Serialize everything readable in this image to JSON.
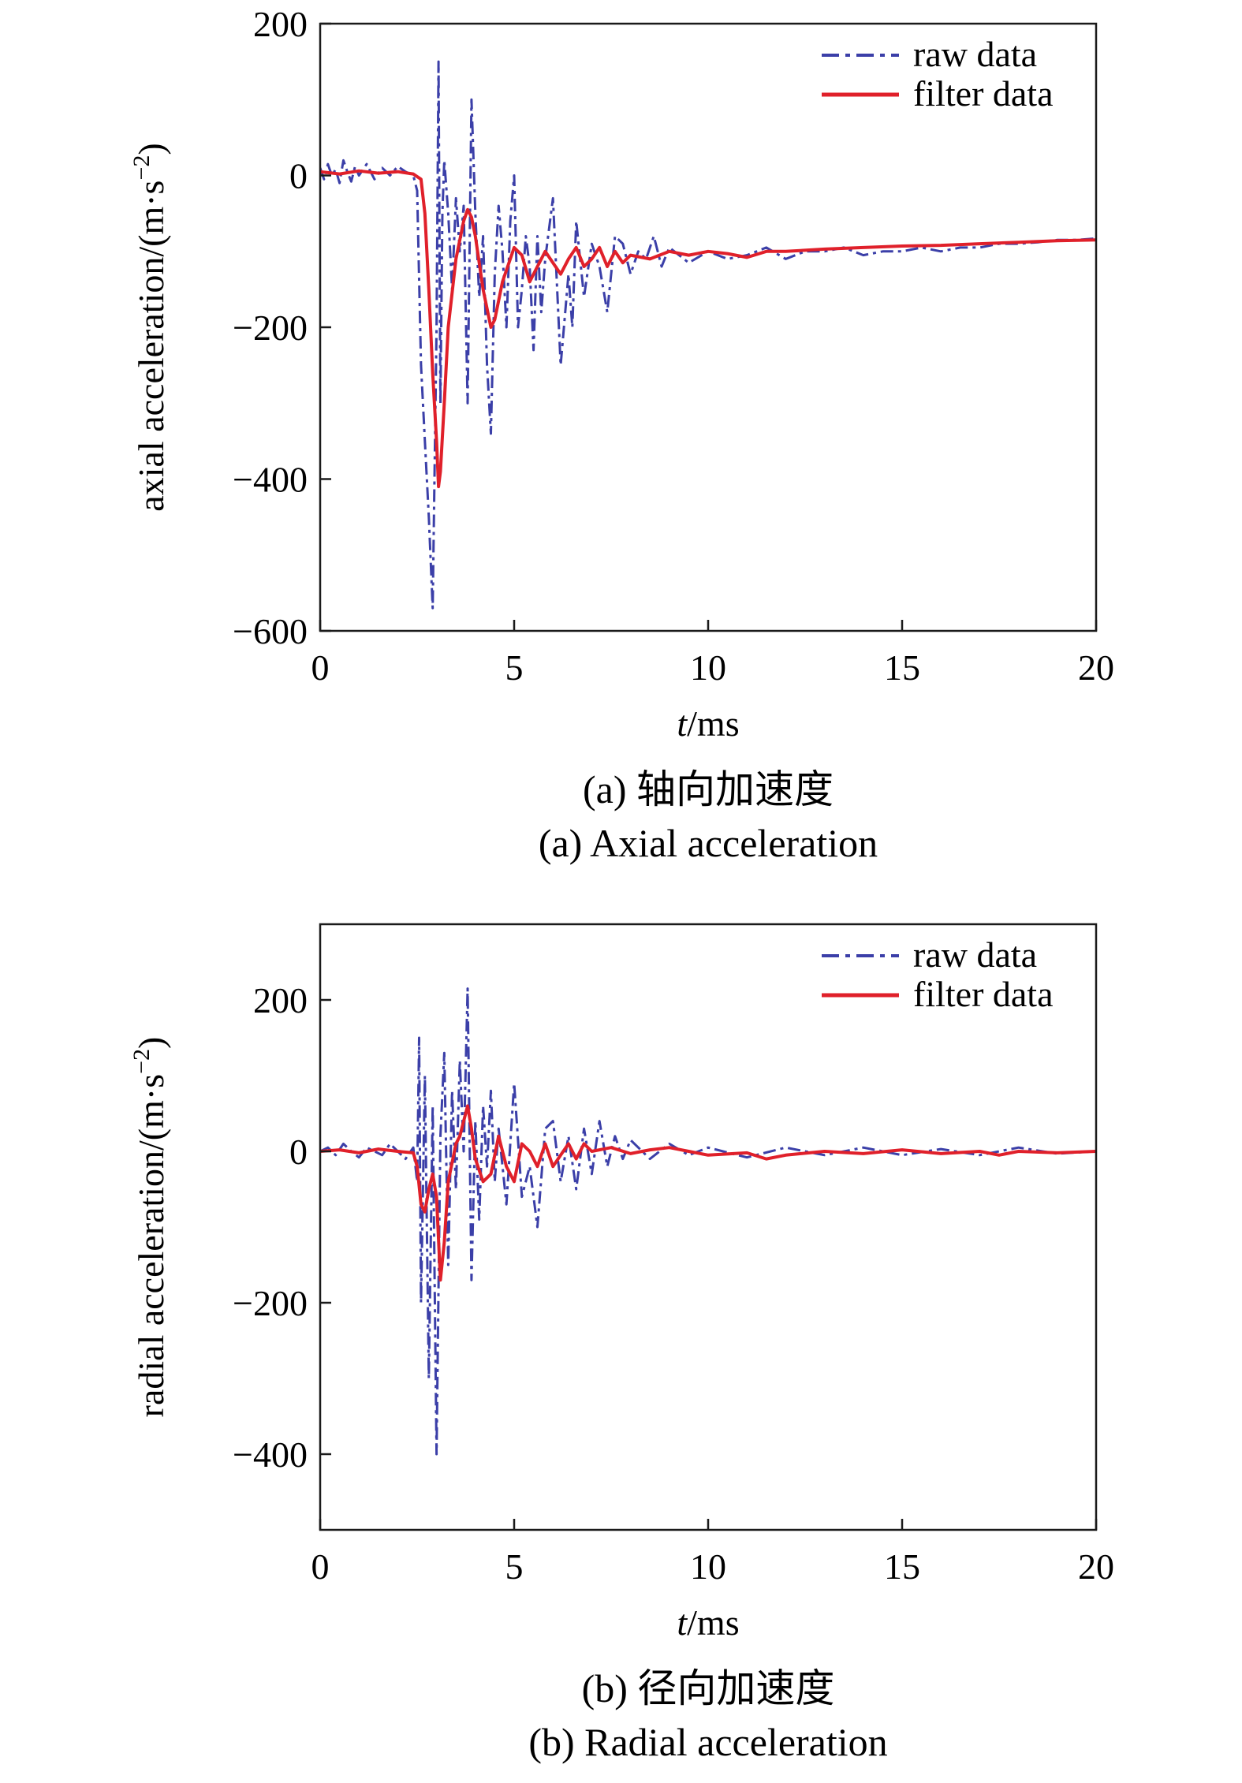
{
  "chart_data": [
    {
      "type": "line",
      "caption_cn": "(a) 轴向加速度",
      "caption_en": "(a) Axial acceleration",
      "xlabel_italic": "t",
      "xlabel_unit": "/ms",
      "ylabel_main": "axial acceleration/(m·s",
      "ylabel_sup": "−2",
      "ylabel_close": ")",
      "xlim": [
        0,
        20
      ],
      "ylim": [
        -600,
        200
      ],
      "xticks": [
        0,
        5,
        10,
        15,
        20
      ],
      "xtick_labels": [
        "0",
        "5",
        "10",
        "15",
        "20"
      ],
      "yticks": [
        -600,
        -400,
        -200,
        0,
        200
      ],
      "ytick_labels": [
        "−600",
        "−400",
        "−200",
        "0",
        "200"
      ],
      "legend": {
        "placement": "top-right"
      },
      "series": [
        {
          "name": "raw data",
          "style": "dash-dot",
          "color": "#3b3fa8",
          "x": [
            0,
            0.1,
            0.2,
            0.3,
            0.4,
            0.5,
            0.6,
            0.7,
            0.8,
            0.9,
            1.0,
            1.2,
            1.4,
            1.6,
            1.8,
            2.0,
            2.2,
            2.4,
            2.5,
            2.6,
            2.7,
            2.8,
            2.9,
            3.0,
            3.05,
            3.1,
            3.15,
            3.2,
            3.3,
            3.4,
            3.5,
            3.6,
            3.7,
            3.8,
            3.9,
            4.0,
            4.1,
            4.2,
            4.3,
            4.4,
            4.5,
            4.6,
            4.7,
            4.8,
            4.9,
            5.0,
            5.1,
            5.2,
            5.3,
            5.4,
            5.5,
            5.6,
            5.7,
            5.8,
            5.9,
            6.0,
            6.2,
            6.4,
            6.5,
            6.6,
            6.8,
            7.0,
            7.2,
            7.4,
            7.6,
            7.8,
            8.0,
            8.2,
            8.4,
            8.6,
            8.8,
            9.0,
            9.5,
            10.0,
            10.5,
            11.0,
            11.5,
            12.0,
            12.5,
            13.0,
            13.5,
            14.0,
            14.5,
            15.0,
            15.5,
            16.0,
            16.5,
            17.0,
            17.5,
            18.0,
            18.5,
            19.0,
            19.5,
            20.0
          ],
          "y": [
            10,
            -5,
            15,
            0,
            8,
            -10,
            20,
            5,
            -8,
            12,
            0,
            15,
            -5,
            10,
            0,
            12,
            5,
            0,
            -20,
            -250,
            -350,
            -450,
            -570,
            -200,
            150,
            -300,
            -50,
            20,
            -50,
            -150,
            -30,
            -100,
            -40,
            -300,
            100,
            -50,
            -160,
            -80,
            -250,
            -340,
            -130,
            -40,
            -100,
            -200,
            -60,
            0,
            -200,
            -150,
            -80,
            -120,
            -230,
            -80,
            -180,
            -110,
            -70,
            -30,
            -250,
            -130,
            -200,
            -60,
            -160,
            -90,
            -120,
            -180,
            -80,
            -90,
            -130,
            -100,
            -110,
            -80,
            -120,
            -95,
            -115,
            -100,
            -110,
            -105,
            -95,
            -110,
            -100,
            -100,
            -95,
            -105,
            -100,
            -100,
            -95,
            -100,
            -95,
            -95,
            -90,
            -90,
            -88,
            -85,
            -85,
            -83
          ]
        },
        {
          "name": "filter data",
          "style": "solid",
          "color": "#e0202a",
          "x": [
            0,
            0.5,
            1.0,
            1.5,
            2.0,
            2.4,
            2.6,
            2.7,
            2.8,
            2.9,
            3.0,
            3.05,
            3.1,
            3.2,
            3.3,
            3.5,
            3.7,
            3.8,
            3.9,
            4.0,
            4.2,
            4.4,
            4.5,
            4.7,
            4.9,
            5.0,
            5.2,
            5.4,
            5.6,
            5.8,
            6.0,
            6.2,
            6.4,
            6.6,
            6.8,
            7.0,
            7.2,
            7.4,
            7.6,
            7.8,
            8.0,
            8.5,
            9.0,
            9.5,
            10.0,
            10.5,
            11.0,
            11.5,
            12.0,
            13.0,
            14.0,
            15.0,
            16.0,
            17.0,
            18.0,
            19.0,
            20.0
          ],
          "y": [
            5,
            2,
            6,
            3,
            5,
            2,
            -5,
            -50,
            -150,
            -260,
            -350,
            -410,
            -390,
            -300,
            -200,
            -110,
            -60,
            -45,
            -55,
            -80,
            -150,
            -200,
            -190,
            -140,
            -110,
            -95,
            -105,
            -140,
            -120,
            -100,
            -115,
            -130,
            -110,
            -95,
            -120,
            -110,
            -95,
            -120,
            -100,
            -115,
            -105,
            -110,
            -100,
            -105,
            -100,
            -103,
            -108,
            -100,
            -100,
            -97,
            -95,
            -93,
            -92,
            -90,
            -88,
            -86,
            -85
          ]
        }
      ]
    },
    {
      "type": "line",
      "caption_cn": "(b) 径向加速度",
      "caption_en": "(b) Radial acceleration",
      "xlabel_italic": "t",
      "xlabel_unit": "/ms",
      "ylabel_main": "radial acceleration/(m·s",
      "ylabel_sup": "−2",
      "ylabel_close": ")",
      "xlim": [
        0,
        20
      ],
      "ylim": [
        -500,
        300
      ],
      "xticks": [
        0,
        5,
        10,
        15,
        20
      ],
      "xtick_labels": [
        "0",
        "5",
        "10",
        "15",
        "20"
      ],
      "yticks": [
        -400,
        -200,
        0,
        200
      ],
      "ytick_labels": [
        "−400",
        "−200",
        "0",
        "200"
      ],
      "legend": {
        "placement": "top-right"
      },
      "series": [
        {
          "name": "raw data",
          "style": "dash-dot",
          "color": "#3b3fa8",
          "x": [
            0,
            0.2,
            0.4,
            0.6,
            0.8,
            1.0,
            1.2,
            1.4,
            1.6,
            1.8,
            2.0,
            2.2,
            2.4,
            2.5,
            2.55,
            2.6,
            2.7,
            2.8,
            2.9,
            3.0,
            3.05,
            3.1,
            3.2,
            3.3,
            3.4,
            3.5,
            3.6,
            3.7,
            3.8,
            3.9,
            4.0,
            4.1,
            4.2,
            4.3,
            4.4,
            4.5,
            4.6,
            4.8,
            5.0,
            5.2,
            5.4,
            5.6,
            5.8,
            6.0,
            6.2,
            6.4,
            6.6,
            6.8,
            7.0,
            7.2,
            7.4,
            7.6,
            7.8,
            8.0,
            8.5,
            9.0,
            9.5,
            10.0,
            11.0,
            12.0,
            13.0,
            14.0,
            15.0,
            16.0,
            17.0,
            18.0,
            19.0,
            20.0
          ],
          "y": [
            0,
            5,
            -5,
            10,
            0,
            -8,
            5,
            0,
            -5,
            10,
            0,
            -10,
            5,
            -40,
            150,
            -200,
            100,
            -300,
            60,
            -400,
            -180,
            20,
            130,
            -150,
            80,
            -50,
            120,
            0,
            215,
            -170,
            40,
            -90,
            60,
            -20,
            80,
            -40,
            30,
            -70,
            90,
            -60,
            -20,
            -100,
            30,
            40,
            -40,
            20,
            -50,
            30,
            -30,
            40,
            -20,
            20,
            -10,
            15,
            -10,
            10,
            -5,
            5,
            -8,
            5,
            -5,
            5,
            -5,
            3,
            -5,
            5,
            -3,
            0
          ]
        },
        {
          "name": "filter data",
          "style": "solid",
          "color": "#e0202a",
          "x": [
            0,
            0.5,
            1.0,
            1.5,
            2.0,
            2.4,
            2.5,
            2.6,
            2.7,
            2.8,
            2.9,
            3.0,
            3.1,
            3.2,
            3.3,
            3.5,
            3.6,
            3.7,
            3.8,
            3.9,
            4.0,
            4.2,
            4.4,
            4.6,
            4.8,
            5.0,
            5.2,
            5.4,
            5.6,
            5.8,
            6.0,
            6.2,
            6.4,
            6.6,
            6.8,
            7.0,
            7.5,
            8.0,
            8.5,
            9.0,
            9.5,
            10.0,
            11.0,
            11.5,
            12.0,
            13.0,
            14.0,
            15.0,
            16.0,
            17.0,
            17.5,
            18.0,
            19.0,
            20.0
          ],
          "y": [
            0,
            2,
            -2,
            3,
            0,
            -2,
            -20,
            -70,
            -80,
            -50,
            -30,
            -60,
            -170,
            -120,
            -40,
            10,
            20,
            40,
            60,
            30,
            -10,
            -40,
            -30,
            20,
            -20,
            -40,
            10,
            0,
            -20,
            10,
            -20,
            -5,
            10,
            -10,
            10,
            0,
            5,
            -3,
            2,
            5,
            0,
            -5,
            -2,
            -10,
            -5,
            0,
            -3,
            2,
            -3,
            0,
            -5,
            0,
            -2,
            0
          ]
        }
      ]
    }
  ]
}
